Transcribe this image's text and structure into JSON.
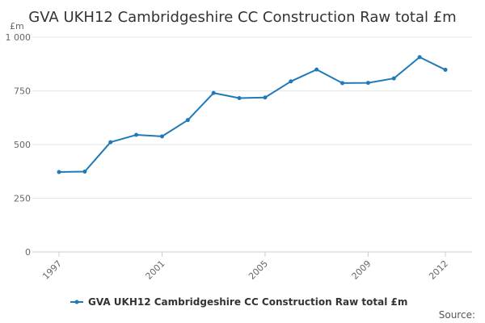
{
  "chart_data": {
    "type": "line",
    "title": "GVA UKH12 Cambridgeshire CC Construction Raw total £m",
    "ylabel": "£m",
    "xlabel": "",
    "ylim": [
      0,
      1000
    ],
    "xlim": [
      1997,
      2012
    ],
    "y_ticks": [
      {
        "value": 0,
        "label": "0"
      },
      {
        "value": 250,
        "label": "250"
      },
      {
        "value": 500,
        "label": "500"
      },
      {
        "value": 750,
        "label": "750"
      },
      {
        "value": 1000,
        "label": "1 000"
      }
    ],
    "x_ticks": [
      {
        "value": 1997,
        "label": "1997"
      },
      {
        "value": 2001,
        "label": "2001"
      },
      {
        "value": 2005,
        "label": "2005"
      },
      {
        "value": 2009,
        "label": "2009"
      },
      {
        "value": 2012,
        "label": "2012"
      }
    ],
    "grid": true,
    "legend_position": "bottom",
    "series": [
      {
        "name": "GVA UKH12 Cambridgeshire CC Construction Raw total £m",
        "color": "#1f7ab8",
        "x": [
          1997,
          1998,
          1999,
          2000,
          2001,
          2002,
          2003,
          2004,
          2005,
          2006,
          2007,
          2008,
          2009,
          2010,
          2011,
          2012
        ],
        "y": [
          372,
          374,
          511,
          545,
          538,
          614,
          740,
          716,
          719,
          794,
          849,
          786,
          787,
          808,
          907,
          848
        ]
      }
    ],
    "source_label": "Source:"
  }
}
